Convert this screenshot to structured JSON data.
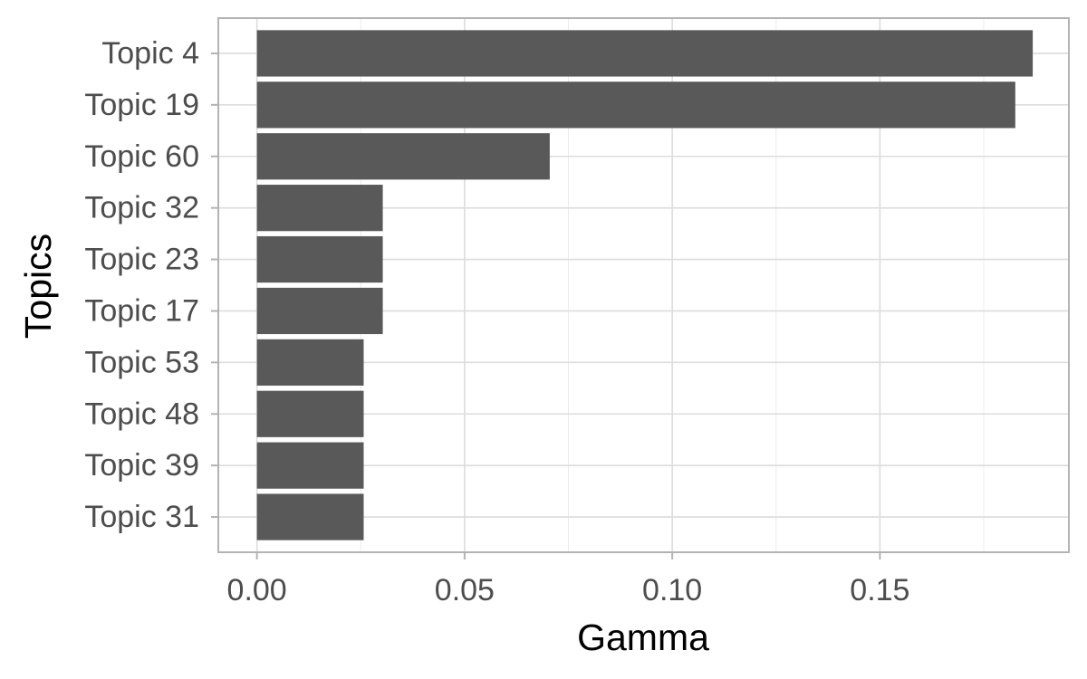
{
  "chart_data": {
    "type": "bar",
    "orientation": "horizontal",
    "categories": [
      "Topic 4",
      "Topic 19",
      "Topic 60",
      "Topic 32",
      "Topic 23",
      "Topic 17",
      "Topic 53",
      "Topic 48",
      "Topic 39",
      "Topic 31"
    ],
    "values": [
      0.1868,
      0.1826,
      0.0705,
      0.0303,
      0.0303,
      0.0303,
      0.0257,
      0.0257,
      0.0257,
      0.0257
    ],
    "xlabel": "Gamma",
    "ylabel": "Topics",
    "xlim": [
      -0.0093,
      0.1955
    ],
    "xticks": [
      0.0,
      0.05,
      0.1,
      0.15
    ],
    "xtick_labels": [
      "0.00",
      "0.05",
      "0.10",
      "0.15"
    ],
    "grid": true,
    "legend": "none",
    "colors": {
      "bar": "#595959",
      "panel_border": "#b3b3b3",
      "grid_major": "#dcdcdc",
      "grid_minor": "#ececec",
      "tick_text": "#4d4d4d",
      "title_text": "#000000"
    }
  }
}
